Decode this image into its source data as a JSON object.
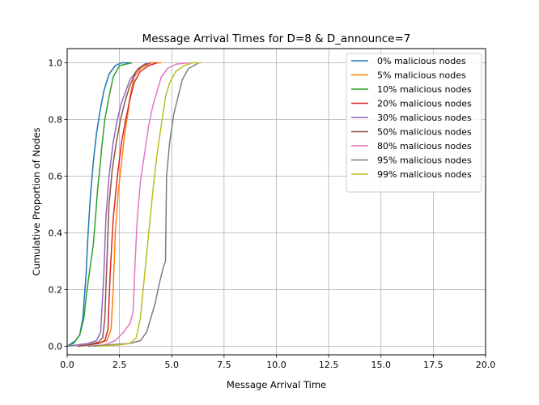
{
  "chart_data": {
    "type": "line",
    "title": "Message Arrival Times for D=8 & D_announce=7",
    "xlabel": "Message Arrival Time",
    "ylabel": "Cumulative Proportion of Nodes",
    "xlim": [
      0,
      20
    ],
    "ylim": [
      -0.03,
      1.05
    ],
    "xticks": [
      0,
      2.5,
      5,
      7.5,
      10,
      12.5,
      15,
      17.5,
      20
    ],
    "xtick_labels": [
      "0.0",
      "2.5",
      "5.0",
      "7.5",
      "10.0",
      "12.5",
      "15.0",
      "17.5",
      "20.0"
    ],
    "yticks": [
      0,
      0.2,
      0.4,
      0.6,
      0.8,
      1.0
    ],
    "ytick_labels": [
      "0.0",
      "0.2",
      "0.4",
      "0.6",
      "0.8",
      "1.0"
    ],
    "grid": true,
    "legend_position": "top-right",
    "series": [
      {
        "name": "0% malicious nodes",
        "color": "#1f77b4",
        "points": [
          [
            0,
            0
          ],
          [
            0.2,
            0.01
          ],
          [
            0.4,
            0.02
          ],
          [
            0.6,
            0.04
          ],
          [
            0.75,
            0.1
          ],
          [
            0.9,
            0.25
          ],
          [
            1.0,
            0.4
          ],
          [
            1.1,
            0.52
          ],
          [
            1.25,
            0.65
          ],
          [
            1.4,
            0.75
          ],
          [
            1.55,
            0.82
          ],
          [
            1.75,
            0.9
          ],
          [
            2.0,
            0.96
          ],
          [
            2.3,
            0.99
          ],
          [
            2.6,
            1.0
          ],
          [
            3.0,
            1.0
          ]
        ]
      },
      {
        "name": "5% malicious nodes",
        "color": "#ff7f0e",
        "points": [
          [
            0.5,
            0
          ],
          [
            1.0,
            0.005
          ],
          [
            1.5,
            0.01
          ],
          [
            1.9,
            0.02
          ],
          [
            2.1,
            0.06
          ],
          [
            2.2,
            0.2
          ],
          [
            2.3,
            0.4
          ],
          [
            2.45,
            0.55
          ],
          [
            2.6,
            0.65
          ],
          [
            2.75,
            0.75
          ],
          [
            2.9,
            0.82
          ],
          [
            3.0,
            0.88
          ],
          [
            3.2,
            0.95
          ],
          [
            3.5,
            0.98
          ],
          [
            4.0,
            1.0
          ],
          [
            4.5,
            1.0
          ]
        ]
      },
      {
        "name": "10% malicious nodes",
        "color": "#2ca02c",
        "points": [
          [
            0,
            0
          ],
          [
            0.3,
            0.01
          ],
          [
            0.6,
            0.04
          ],
          [
            0.8,
            0.1
          ],
          [
            0.95,
            0.2
          ],
          [
            1.1,
            0.28
          ],
          [
            1.25,
            0.36
          ],
          [
            1.35,
            0.45
          ],
          [
            1.45,
            0.55
          ],
          [
            1.55,
            0.62
          ],
          [
            1.65,
            0.7
          ],
          [
            1.8,
            0.8
          ],
          [
            2.0,
            0.88
          ],
          [
            2.2,
            0.95
          ],
          [
            2.5,
            0.99
          ],
          [
            3.1,
            1.0
          ]
        ]
      },
      {
        "name": "20% malicious nodes",
        "color": "#d62728",
        "points": [
          [
            0.5,
            0
          ],
          [
            1.0,
            0.005
          ],
          [
            1.5,
            0.01
          ],
          [
            1.8,
            0.02
          ],
          [
            1.95,
            0.06
          ],
          [
            2.05,
            0.25
          ],
          [
            2.2,
            0.45
          ],
          [
            2.4,
            0.6
          ],
          [
            2.6,
            0.72
          ],
          [
            2.8,
            0.8
          ],
          [
            3.0,
            0.87
          ],
          [
            3.2,
            0.93
          ],
          [
            3.5,
            0.97
          ],
          [
            3.9,
            0.99
          ],
          [
            4.3,
            1.0
          ]
        ]
      },
      {
        "name": "30% malicious nodes",
        "color": "#9467bd",
        "points": [
          [
            0,
            0
          ],
          [
            0.5,
            0.005
          ],
          [
            1.0,
            0.01
          ],
          [
            1.4,
            0.02
          ],
          [
            1.6,
            0.05
          ],
          [
            1.75,
            0.25
          ],
          [
            1.85,
            0.45
          ],
          [
            2.0,
            0.6
          ],
          [
            2.2,
            0.72
          ],
          [
            2.4,
            0.8
          ],
          [
            2.6,
            0.86
          ],
          [
            2.8,
            0.9
          ],
          [
            3.0,
            0.94
          ],
          [
            3.4,
            0.98
          ],
          [
            3.8,
            1.0
          ]
        ]
      },
      {
        "name": "50% malicious nodes",
        "color": "#8c564b",
        "points": [
          [
            0.5,
            0
          ],
          [
            1.0,
            0.005
          ],
          [
            1.5,
            0.015
          ],
          [
            1.7,
            0.03
          ],
          [
            1.8,
            0.1
          ],
          [
            1.9,
            0.3
          ],
          [
            2.0,
            0.5
          ],
          [
            2.15,
            0.62
          ],
          [
            2.35,
            0.72
          ],
          [
            2.55,
            0.8
          ],
          [
            2.75,
            0.86
          ],
          [
            3.0,
            0.92
          ],
          [
            3.3,
            0.97
          ],
          [
            3.6,
            0.99
          ],
          [
            4.0,
            1.0
          ]
        ]
      },
      {
        "name": "80% malicious nodes",
        "color": "#e377c2",
        "points": [
          [
            1.0,
            0
          ],
          [
            1.8,
            0.005
          ],
          [
            2.3,
            0.02
          ],
          [
            2.7,
            0.05
          ],
          [
            3.0,
            0.08
          ],
          [
            3.15,
            0.12
          ],
          [
            3.25,
            0.3
          ],
          [
            3.35,
            0.45
          ],
          [
            3.5,
            0.58
          ],
          [
            3.7,
            0.68
          ],
          [
            3.9,
            0.78
          ],
          [
            4.1,
            0.85
          ],
          [
            4.3,
            0.9
          ],
          [
            4.5,
            0.95
          ],
          [
            4.8,
            0.98
          ],
          [
            5.2,
            0.995
          ],
          [
            5.8,
            1.0
          ]
        ]
      },
      {
        "name": "95% malicious nodes",
        "color": "#7f7f7f",
        "points": [
          [
            1.0,
            0
          ],
          [
            2.0,
            0.005
          ],
          [
            3.0,
            0.01
          ],
          [
            3.5,
            0.02
          ],
          [
            3.8,
            0.05
          ],
          [
            4.0,
            0.1
          ],
          [
            4.2,
            0.15
          ],
          [
            4.4,
            0.22
          ],
          [
            4.6,
            0.28
          ],
          [
            4.7,
            0.3
          ],
          [
            4.75,
            0.6
          ],
          [
            4.9,
            0.72
          ],
          [
            5.1,
            0.82
          ],
          [
            5.3,
            0.88
          ],
          [
            5.5,
            0.94
          ],
          [
            5.8,
            0.98
          ],
          [
            6.3,
            1.0
          ]
        ]
      },
      {
        "name": "99% malicious nodes",
        "color": "#bcbd22",
        "points": [
          [
            1.5,
            0
          ],
          [
            2.5,
            0.005
          ],
          [
            3.0,
            0.01
          ],
          [
            3.3,
            0.03
          ],
          [
            3.5,
            0.1
          ],
          [
            3.7,
            0.25
          ],
          [
            3.9,
            0.4
          ],
          [
            4.1,
            0.55
          ],
          [
            4.3,
            0.68
          ],
          [
            4.5,
            0.78
          ],
          [
            4.7,
            0.88
          ],
          [
            4.9,
            0.93
          ],
          [
            5.2,
            0.97
          ],
          [
            5.6,
            0.99
          ],
          [
            6.0,
            1.0
          ],
          [
            6.4,
            1.0
          ]
        ]
      }
    ]
  }
}
